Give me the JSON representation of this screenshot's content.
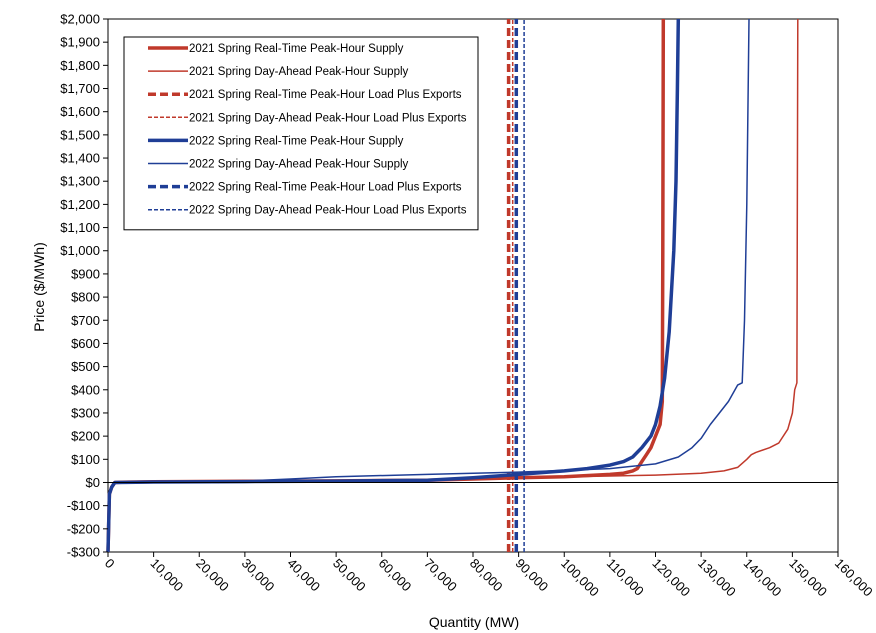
{
  "chart_data": {
    "type": "line",
    "title": "",
    "xlabel": "Quantity (MW)",
    "ylabel": "Price ($/MWh)",
    "xlim": [
      0,
      160000
    ],
    "ylim": [
      -300,
      2000
    ],
    "x_ticks": [
      0,
      10000,
      20000,
      30000,
      40000,
      50000,
      60000,
      70000,
      80000,
      90000,
      100000,
      110000,
      120000,
      130000,
      140000,
      150000,
      160000
    ],
    "x_tick_labels": [
      "0",
      "10,000",
      "20,000",
      "30,000",
      "40,000",
      "50,000",
      "60,000",
      "70,000",
      "80,000",
      "90,000",
      "100,000",
      "110,000",
      "120,000",
      "130,000",
      "140,000",
      "150,000",
      "160,000"
    ],
    "y_ticks": [
      -300,
      -200,
      -100,
      0,
      100,
      200,
      300,
      400,
      500,
      600,
      700,
      800,
      900,
      1000,
      1100,
      1200,
      1300,
      1400,
      1500,
      1600,
      1700,
      1800,
      1900,
      2000
    ],
    "y_tick_labels": [
      "-$300",
      "-$200",
      "-$100",
      "$0",
      "$100",
      "$200",
      "$300",
      "$400",
      "$500",
      "$600",
      "$700",
      "$800",
      "$900",
      "$1,000",
      "$1,100",
      "$1,200",
      "$1,300",
      "$1,400",
      "$1,500",
      "$1,600",
      "$1,700",
      "$1,800",
      "$1,900",
      "$2,000"
    ],
    "grid": false,
    "legend_position": "top-left",
    "series": [
      {
        "name": "2021 Spring Real-Time Peak-Hour Supply",
        "color": "#c0392b",
        "style": "solid",
        "weight": "thick",
        "x": [
          0,
          300,
          800,
          1500,
          3000,
          10000,
          30000,
          50000,
          70000,
          80000,
          90000,
          100000,
          110000,
          113000,
          115000,
          116000,
          117000,
          118000,
          119000,
          120000,
          121000,
          121500,
          121600,
          121700
        ],
        "y": [
          -300,
          -50,
          -20,
          0,
          1,
          3,
          5,
          7,
          10,
          15,
          20,
          25,
          35,
          40,
          50,
          60,
          90,
          120,
          150,
          200,
          250,
          350,
          1000,
          2000
        ]
      },
      {
        "name": "2021 Spring Day-Ahead Peak-Hour Supply",
        "color": "#c0392b",
        "style": "solid",
        "weight": "thin",
        "x": [
          0,
          300,
          800,
          1500,
          10000,
          30000,
          50000,
          70000,
          90000,
          110000,
          120000,
          130000,
          135000,
          138000,
          140000,
          141000,
          142000,
          145000,
          147000,
          149000,
          150000,
          150500,
          151000,
          151200
        ],
        "y": [
          -300,
          -50,
          -20,
          0,
          3,
          5,
          8,
          12,
          20,
          28,
          32,
          40,
          50,
          65,
          100,
          120,
          130,
          150,
          170,
          230,
          300,
          400,
          430,
          2000
        ]
      },
      {
        "name": "2021 Spring Real-Time Peak-Hour Load Plus Exports",
        "color": "#c0392b",
        "style": "dashed",
        "weight": "thick",
        "x": [
          87800,
          87800
        ],
        "y": [
          -300,
          2000
        ]
      },
      {
        "name": "2021 Spring Day-Ahead Peak-Hour Load Plus Exports",
        "color": "#c0392b",
        "style": "dashed",
        "weight": "thin",
        "x": [
          88700,
          88700
        ],
        "y": [
          -300,
          2000
        ]
      },
      {
        "name": "2022 Spring Real-Time Peak-Hour Supply",
        "color": "#1f3e96",
        "style": "solid",
        "weight": "thick",
        "x": [
          0,
          300,
          800,
          1500,
          10000,
          30000,
          50000,
          70000,
          80000,
          90000,
          100000,
          105000,
          110000,
          113000,
          115000,
          117000,
          119000,
          120000,
          121000,
          122000,
          123000,
          124000,
          124500,
          124800,
          125000
        ],
        "y": [
          -300,
          -50,
          -20,
          0,
          2,
          4,
          6,
          10,
          20,
          35,
          50,
          60,
          75,
          90,
          110,
          150,
          200,
          250,
          330,
          450,
          650,
          1000,
          1300,
          1700,
          2000
        ]
      },
      {
        "name": "2022 Spring Day-Ahead Peak-Hour Supply",
        "color": "#1f3e96",
        "style": "solid",
        "weight": "thin",
        "x": [
          0,
          300,
          800,
          1500,
          10000,
          30000,
          40000,
          50000,
          70000,
          90000,
          110000,
          120000,
          125000,
          128000,
          130000,
          132000,
          134000,
          136000,
          138000,
          139000,
          139500,
          140000,
          140500
        ],
        "y": [
          -300,
          -50,
          -20,
          0,
          3,
          6,
          15,
          25,
          35,
          45,
          60,
          80,
          110,
          150,
          190,
          250,
          300,
          350,
          420,
          430,
          700,
          1200,
          2000
        ]
      },
      {
        "name": "2022 Spring Real-Time Peak-Hour Load Plus Exports",
        "color": "#1f3e96",
        "style": "dashed",
        "weight": "thick",
        "x": [
          89500,
          89500
        ],
        "y": [
          -300,
          2000
        ]
      },
      {
        "name": "2022 Spring Day-Ahead Peak-Hour Load Plus Exports",
        "color": "#1f3e96",
        "style": "dashed",
        "weight": "thin",
        "x": [
          91200,
          91200
        ],
        "y": [
          -300,
          2000
        ]
      }
    ]
  }
}
